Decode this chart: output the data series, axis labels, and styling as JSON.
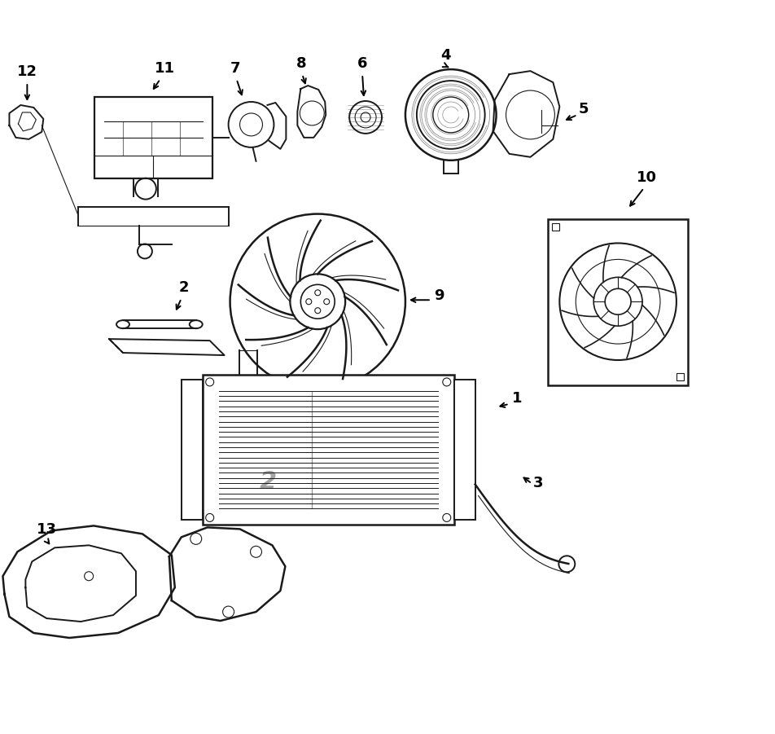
{
  "background_color": "#ffffff",
  "line_color": "#1a1a1a",
  "figure_width": 9.52,
  "figure_height": 9.01,
  "dpi": 100,
  "lw_main": 1.4,
  "lw_thin": 0.8,
  "label_fontsize": 13
}
